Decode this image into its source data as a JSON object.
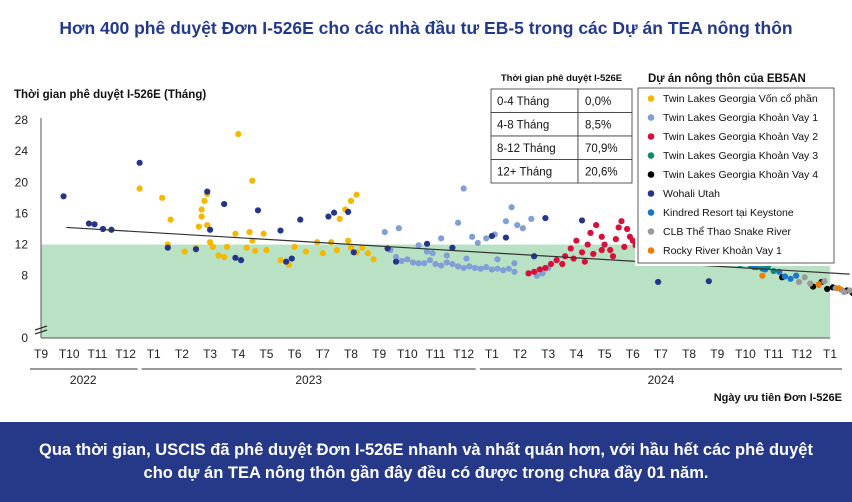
{
  "title": "Hơn 400 phê duyệt Đơn I-526E cho các nhà đầu tư EB-5 trong các Dự án TEA nông thôn",
  "banner": "Qua thời gian, USCIS đã phê duyệt Đơn I-526E nhanh và nhất quán hơn, với hầu hết các phê duyệt cho dự án TEA nông thôn gần đây đều có được trong chưa đầy 01 năm.",
  "chart_data": {
    "type": "scatter",
    "ylabel": "Thời gian phê duyệt I-526E (Tháng)",
    "xlabel": "Ngày ưu tiên Đơn I-526E",
    "ylim": [
      0,
      28
    ],
    "yticks": [
      "0",
      "8",
      "12",
      "16",
      "20",
      "24",
      "28"
    ],
    "x_ticks": [
      "T9",
      "T10",
      "T11",
      "T12",
      "T1",
      "T2",
      "T3",
      "T4",
      "T5",
      "T6",
      "T7",
      "T8",
      "T9",
      "T10",
      "T11",
      "T12",
      "T1",
      "T2",
      "T3",
      "T4",
      "T5",
      "T6",
      "T7",
      "T8",
      "T9",
      "T10",
      "T11",
      "T12",
      "T1"
    ],
    "years": [
      "2022",
      "2023",
      "2024"
    ],
    "shaded_band": [
      0,
      12
    ],
    "trendline": {
      "x": [
        0.9,
        28.7
      ],
      "y": [
        14.2,
        8.2
      ]
    },
    "table": {
      "header": "Thời gian phê duyệt I-526E",
      "rows": [
        [
          "0-4 Tháng",
          "0,0%"
        ],
        [
          "4-8 Tháng",
          "8,5%"
        ],
        [
          "8-12 Tháng",
          "70,9%"
        ],
        [
          "12+ Tháng",
          "20,6%"
        ]
      ]
    },
    "legend_title": "Dự án nông thôn của EB5AN",
    "series": [
      {
        "name": "Twin Lakes Georgia Vốn cổ phần",
        "color": "#f5b800",
        "points": [
          [
            3.5,
            19.2
          ],
          [
            4.3,
            18
          ],
          [
            4.6,
            15.2
          ],
          [
            4.5,
            12
          ],
          [
            5.1,
            11.1
          ],
          [
            5.5,
            11.6
          ],
          [
            5.7,
            16.5
          ],
          [
            5.8,
            17.6
          ],
          [
            5.9,
            18.5
          ],
          [
            5.7,
            15.6
          ],
          [
            5.9,
            14.5
          ],
          [
            5.6,
            14.3
          ],
          [
            6.0,
            12.3
          ],
          [
            6.1,
            11.7
          ],
          [
            6.3,
            10.6
          ],
          [
            6.5,
            10.4
          ],
          [
            6.6,
            11.7
          ],
          [
            6.9,
            13.4
          ],
          [
            7.0,
            26.2
          ],
          [
            7.3,
            11.6
          ],
          [
            7.4,
            13.6
          ],
          [
            7.5,
            20.2
          ],
          [
            7.5,
            12.5
          ],
          [
            7.6,
            11.2
          ],
          [
            7.9,
            13.4
          ],
          [
            8.0,
            11.3
          ],
          [
            8.5,
            10
          ],
          [
            8.8,
            9.4
          ],
          [
            9.0,
            11.7
          ],
          [
            9.4,
            11.1
          ],
          [
            9.8,
            12.3
          ],
          [
            10.0,
            10.9
          ],
          [
            10.3,
            12.3
          ],
          [
            10.5,
            11.3
          ],
          [
            10.6,
            15.3
          ],
          [
            10.8,
            16.5
          ],
          [
            10.9,
            12.5
          ],
          [
            11.0,
            11.6
          ],
          [
            11.2,
            18.4
          ],
          [
            11.0,
            17.6
          ],
          [
            11.2,
            11
          ],
          [
            11.4,
            11.6
          ],
          [
            11.6,
            10.9
          ],
          [
            11.8,
            10.1
          ]
        ]
      },
      {
        "name": "Twin Lakes Georgia Khoản Vay 1",
        "color": "#7f9fd6",
        "points": [
          [
            12.2,
            13.6
          ],
          [
            12.4,
            11.3
          ],
          [
            12.6,
            10.4
          ],
          [
            12.8,
            9.9
          ],
          [
            13.0,
            10.1
          ],
          [
            13.2,
            9.7
          ],
          [
            13.4,
            9.6
          ],
          [
            13.6,
            9.6
          ],
          [
            13.8,
            10
          ],
          [
            14.0,
            9.5
          ],
          [
            14.2,
            9.3
          ],
          [
            14.4,
            9.7
          ],
          [
            14.6,
            9.5
          ],
          [
            14.8,
            9.2
          ],
          [
            15.0,
            9
          ],
          [
            15.2,
            9.2
          ],
          [
            15.4,
            9
          ],
          [
            15.6,
            8.9
          ],
          [
            15.8,
            9.1
          ],
          [
            16.0,
            8.8
          ],
          [
            16.2,
            8.9
          ],
          [
            16.4,
            8.7
          ],
          [
            16.6,
            8.9
          ],
          [
            16.8,
            8.5
          ],
          [
            15.0,
            19.2
          ],
          [
            14.8,
            14.8
          ],
          [
            15.3,
            13
          ],
          [
            15.5,
            12.2
          ],
          [
            15.8,
            12.8
          ],
          [
            16.1,
            13.3
          ],
          [
            16.5,
            15
          ],
          [
            16.7,
            16.8
          ],
          [
            16.9,
            14.5
          ],
          [
            17.1,
            14.1
          ],
          [
            17.4,
            15.3
          ],
          [
            17.6,
            8
          ],
          [
            17.8,
            8.3
          ],
          [
            18.0,
            9
          ],
          [
            13.7,
            11.1
          ],
          [
            13.9,
            10.9
          ],
          [
            14.4,
            10.6
          ],
          [
            15.1,
            10.2
          ],
          [
            16.2,
            10.1
          ],
          [
            16.8,
            9.6
          ],
          [
            12.7,
            14.1
          ],
          [
            13.4,
            11.9
          ],
          [
            14.2,
            12.8
          ]
        ]
      },
      {
        "name": "Twin Lakes Georgia Khoản Vay 2",
        "color": "#d80f3b",
        "points": [
          [
            17.3,
            8.3
          ],
          [
            17.5,
            8.5
          ],
          [
            17.7,
            8.8
          ],
          [
            17.9,
            9
          ],
          [
            18.1,
            9.5
          ],
          [
            18.3,
            10
          ],
          [
            18.5,
            9.5
          ],
          [
            18.6,
            10.5
          ],
          [
            18.8,
            11.5
          ],
          [
            19.0,
            12.5
          ],
          [
            19.2,
            11
          ],
          [
            19.4,
            12
          ],
          [
            19.5,
            13.5
          ],
          [
            19.7,
            14.5
          ],
          [
            19.9,
            13
          ],
          [
            20.0,
            12
          ],
          [
            20.2,
            11.3
          ],
          [
            20.4,
            12.7
          ],
          [
            20.5,
            14.2
          ],
          [
            20.6,
            15
          ],
          [
            20.8,
            14
          ],
          [
            20.9,
            13
          ],
          [
            21.0,
            12.5
          ],
          [
            21.2,
            14.8
          ],
          [
            21.3,
            12
          ],
          [
            19.6,
            10.8
          ],
          [
            19.9,
            11.3
          ],
          [
            20.3,
            10.5
          ],
          [
            20.7,
            11.7
          ],
          [
            21.1,
            11.9
          ],
          [
            18.9,
            10.2
          ],
          [
            19.3,
            9.8
          ]
        ]
      },
      {
        "name": "Twin Lakes Georgia Khoản Vay 3",
        "color": "#0f8a75",
        "points": [
          [
            21.8,
            11.5
          ],
          [
            22.0,
            11
          ],
          [
            22.2,
            12
          ],
          [
            22.4,
            11.2
          ],
          [
            22.6,
            10.7
          ],
          [
            22.8,
            11.4
          ],
          [
            23.0,
            10.3
          ],
          [
            23.2,
            11.5
          ],
          [
            23.4,
            10.6
          ],
          [
            23.6,
            10.1
          ],
          [
            23.8,
            10.9
          ],
          [
            24.0,
            10
          ],
          [
            24.2,
            10.4
          ],
          [
            24.4,
            9.9
          ],
          [
            24.6,
            10.2
          ],
          [
            24.8,
            9.5
          ],
          [
            25.0,
            9.7
          ],
          [
            25.2,
            9.3
          ],
          [
            25.4,
            9.1
          ],
          [
            25.6,
            8.9
          ],
          [
            25.8,
            9.2
          ],
          [
            26.0,
            8.6
          ],
          [
            22.5,
            12.4
          ],
          [
            23.1,
            11.9
          ],
          [
            23.7,
            11.2
          ],
          [
            24.3,
            10.7
          ],
          [
            24.9,
            9.8
          ]
        ]
      },
      {
        "name": "Twin Lakes Georgia Khoản Vay 4",
        "color": "#000000",
        "points": [
          [
            26.3,
            7.8
          ],
          [
            27.4,
            6.6
          ],
          [
            27.7,
            7.2
          ],
          [
            27.9,
            6.3
          ],
          [
            28.1,
            6.5
          ],
          [
            28.6,
            6.1
          ],
          [
            28.8,
            5.8
          ]
        ]
      },
      {
        "name": "Wohali Utah",
        "color": "#25368a",
        "points": [
          [
            0.8,
            18.2
          ],
          [
            1.7,
            14.7
          ],
          [
            1.9,
            14.6
          ],
          [
            2.2,
            14
          ],
          [
            2.5,
            13.9
          ],
          [
            3.5,
            22.5
          ],
          [
            4.5,
            11.6
          ],
          [
            5.5,
            11.4
          ],
          [
            5.9,
            18.8
          ],
          [
            6.0,
            13.9
          ],
          [
            6.5,
            17.2
          ],
          [
            6.9,
            10.3
          ],
          [
            7.1,
            10
          ],
          [
            7.7,
            16.4
          ],
          [
            8.5,
            13.8
          ],
          [
            8.7,
            9.8
          ],
          [
            8.9,
            10.2
          ],
          [
            9.2,
            15.2
          ],
          [
            10.2,
            15.6
          ],
          [
            10.4,
            16.1
          ],
          [
            10.9,
            16.2
          ],
          [
            11.1,
            11
          ],
          [
            12.3,
            11.5
          ],
          [
            12.6,
            9.8
          ],
          [
            13.7,
            12.1
          ],
          [
            14.6,
            11.6
          ],
          [
            16.0,
            13.1
          ],
          [
            16.5,
            12.9
          ],
          [
            17.5,
            10.5
          ],
          [
            17.9,
            15.4
          ],
          [
            19.2,
            15.1
          ],
          [
            21.9,
            7.2
          ],
          [
            23.7,
            7.3
          ]
        ]
      },
      {
        "name": "Kindred Resort tại Keystone",
        "color": "#1976c9",
        "points": [
          [
            23.8,
            10.4
          ],
          [
            24.3,
            10.2
          ],
          [
            24.9,
            9.6
          ],
          [
            25.3,
            9.1
          ],
          [
            25.7,
            8.8
          ],
          [
            26.2,
            8.5
          ],
          [
            26.4,
            7.9
          ],
          [
            26.6,
            7.6
          ],
          [
            26.8,
            8
          ]
        ]
      },
      {
        "name": "CLB Thể Thao Snake River",
        "color": "#9a9a9a",
        "points": [
          [
            26.9,
            7.2
          ],
          [
            27.1,
            7.8
          ],
          [
            27.3,
            7
          ],
          [
            27.6,
            6.8
          ],
          [
            27.8,
            7.3
          ],
          [
            28.2,
            6.4
          ],
          [
            28.4,
            6.2
          ],
          [
            28.5,
            5.9
          ],
          [
            28.7,
            6.1
          ]
        ]
      },
      {
        "name": "Rocky River Khoản Vay 1",
        "color": "#f07d00",
        "points": [
          [
            25.6,
            8
          ],
          [
            27.6,
            6.9
          ],
          [
            28.3,
            6.4
          ]
        ]
      }
    ]
  }
}
